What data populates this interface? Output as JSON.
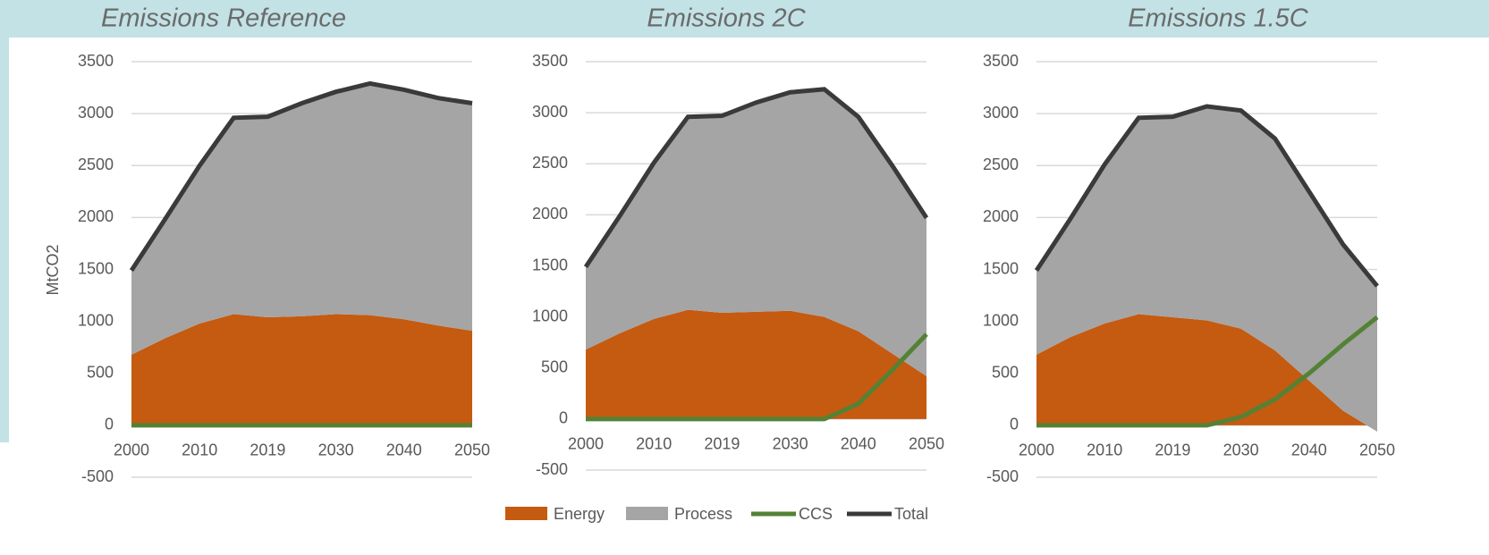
{
  "chart_data": [
    {
      "type": "area",
      "title": "Emissions Reference",
      "ylabel": "MtCO2",
      "categories": [
        "2000",
        null,
        "2010",
        null,
        "2019",
        null,
        "2030",
        null,
        "2040",
        null,
        "2050"
      ],
      "series": [
        {
          "name": "Energy",
          "type": "stacked-area",
          "color": "#c55a11",
          "values": [
            680,
            840,
            980,
            1070,
            1040,
            1050,
            1070,
            1060,
            1020,
            960,
            910
          ]
        },
        {
          "name": "Process",
          "type": "stacked-area",
          "color": "#a5a5a5",
          "values": [
            810,
            1150,
            1520,
            1890,
            1930,
            2050,
            2140,
            2230,
            2210,
            2190,
            2190
          ]
        },
        {
          "name": "CCS",
          "type": "line",
          "color": "#548235",
          "values": [
            0,
            0,
            0,
            0,
            0,
            0,
            0,
            0,
            0,
            0,
            0
          ]
        },
        {
          "name": "Total",
          "type": "line",
          "color": "#3a3a3a",
          "values": [
            1490,
            1990,
            2500,
            2960,
            2970,
            3100,
            3210,
            3290,
            3230,
            3150,
            3100
          ]
        }
      ],
      "ylim": [
        -500,
        3500
      ],
      "yticks": [
        -500,
        0,
        500,
        1000,
        1500,
        2000,
        2500,
        3000,
        3500
      ],
      "grid": true
    },
    {
      "type": "area",
      "title": "Emissions 2C",
      "categories": [
        "2000",
        null,
        "2010",
        null,
        "2019",
        null,
        "2030",
        null,
        "2040",
        null,
        "2050"
      ],
      "series": [
        {
          "name": "Energy",
          "type": "stacked-area",
          "color": "#c55a11",
          "values": [
            680,
            840,
            980,
            1070,
            1040,
            1050,
            1060,
            1000,
            860,
            640,
            420
          ]
        },
        {
          "name": "Process",
          "type": "stacked-area",
          "color": "#a5a5a5",
          "values": [
            810,
            1150,
            1530,
            1890,
            1930,
            2050,
            2140,
            2230,
            2100,
            1840,
            1550
          ]
        },
        {
          "name": "CCS",
          "type": "line",
          "color": "#548235",
          "values": [
            0,
            0,
            0,
            0,
            0,
            0,
            0,
            0,
            150,
            480,
            830
          ]
        },
        {
          "name": "Total",
          "type": "line",
          "color": "#3a3a3a",
          "values": [
            1490,
            1990,
            2510,
            2960,
            2970,
            3100,
            3200,
            3230,
            2960,
            2480,
            1970
          ]
        }
      ],
      "ylim": [
        -500,
        3500
      ],
      "yticks": [
        -500,
        0,
        500,
        1000,
        1500,
        2000,
        2500,
        3000,
        3500
      ],
      "grid": true
    },
    {
      "type": "area",
      "title": "Emissions 1.5C",
      "categories": [
        "2000",
        null,
        "2010",
        null,
        "2019",
        null,
        "2030",
        null,
        "2040",
        null,
        "2050"
      ],
      "series": [
        {
          "name": "Energy",
          "type": "stacked-area",
          "color": "#c55a11",
          "values": [
            680,
            850,
            980,
            1070,
            1040,
            1010,
            930,
            720,
            430,
            140,
            -60
          ]
        },
        {
          "name": "Process",
          "type": "stacked-area",
          "color": "#a5a5a5",
          "values": [
            810,
            1140,
            1530,
            1890,
            1930,
            2060,
            2100,
            2040,
            1820,
            1600,
            1400
          ]
        },
        {
          "name": "CCS",
          "type": "line",
          "color": "#548235",
          "values": [
            0,
            0,
            0,
            0,
            0,
            0,
            80,
            250,
            500,
            780,
            1040
          ]
        },
        {
          "name": "Total",
          "type": "line",
          "color": "#3a3a3a",
          "values": [
            1490,
            1990,
            2510,
            2960,
            2970,
            3070,
            3030,
            2760,
            2250,
            1740,
            1340
          ]
        }
      ],
      "ylim": [
        -500,
        3500
      ],
      "yticks": [
        -500,
        0,
        500,
        1000,
        1500,
        2000,
        2500,
        3000,
        3500
      ],
      "grid": true
    }
  ]
}
